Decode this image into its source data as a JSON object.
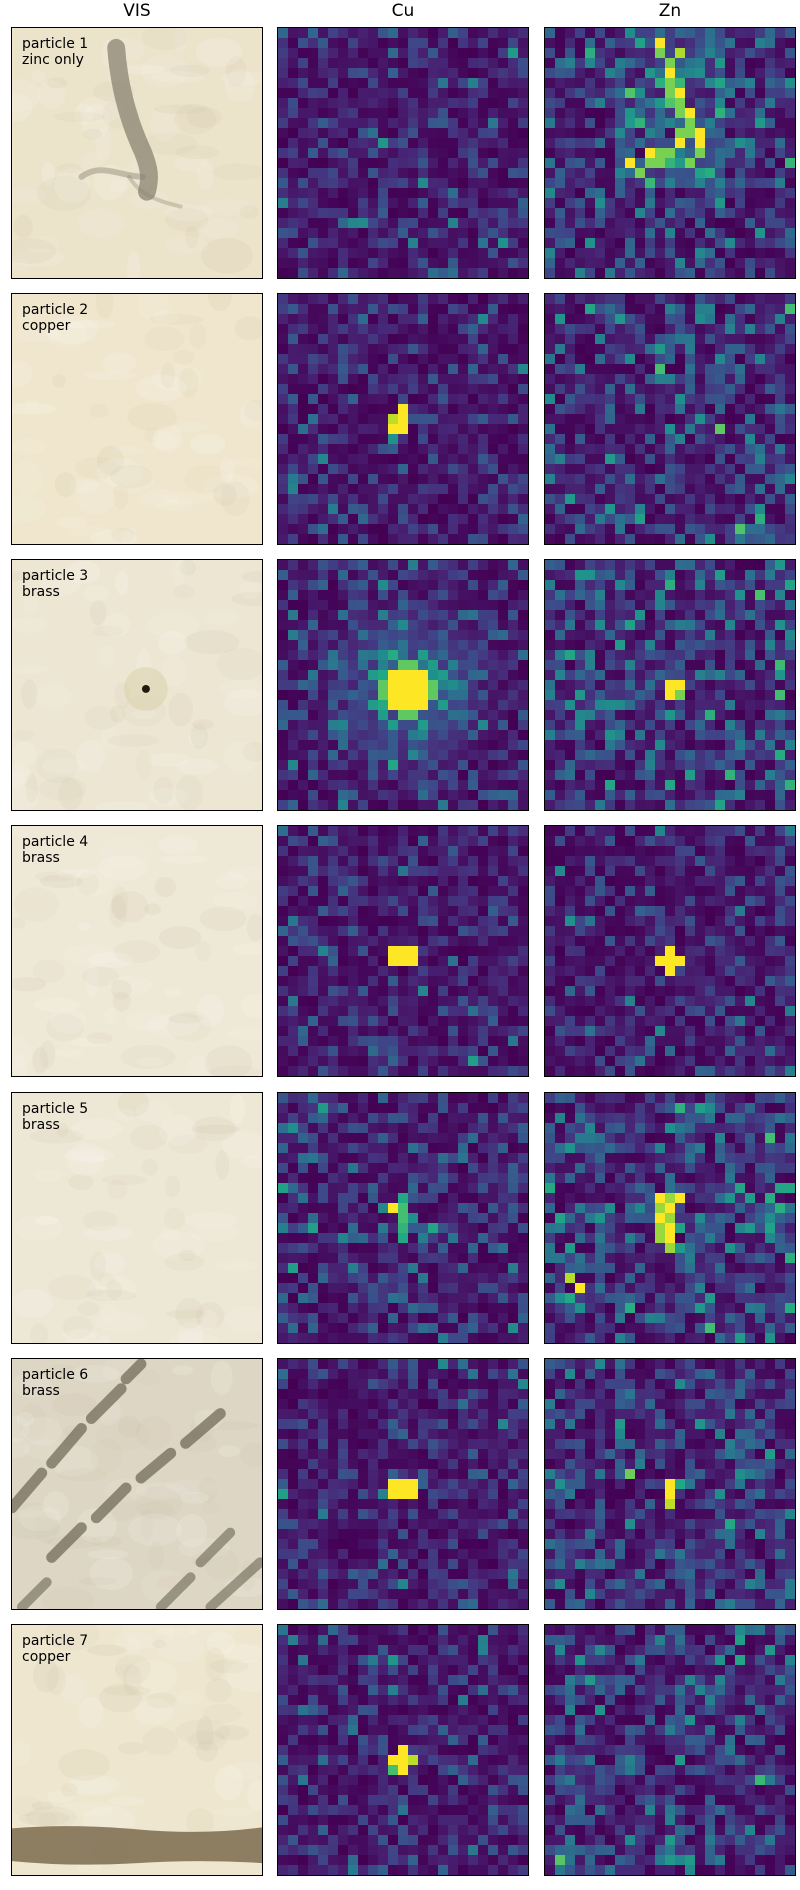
{
  "chart_data": {
    "type": "heatmap",
    "columns": [
      "VIS",
      "Cu",
      "Zn"
    ],
    "colormap": "viridis",
    "grid": [
      25,
      25
    ],
    "rows": [
      {
        "label_line1": "particle 1",
        "label_line2": "zinc only",
        "vis": {
          "paper": "#ece3cb",
          "feature": "vertical dark streak with branching stroke",
          "feature_color": "#8a8372"
        },
        "cu": {
          "hotspot": null,
          "background": 0.15
        },
        "zn": {
          "hotspot": "elongated streak, upper middle",
          "peak": 1.0,
          "background": 0.25
        }
      },
      {
        "label_line1": "particle 2",
        "label_line2": "copper",
        "vis": {
          "paper": "#efe6cd",
          "feature": "none"
        },
        "cu": {
          "hotspot": "small, center",
          "peak": 1.0,
          "background": 0.15
        },
        "zn": {
          "hotspot": "faint, center-right",
          "peak": 0.7,
          "background": 0.25
        }
      },
      {
        "label_line1": "particle 3",
        "label_line2": "brass",
        "vis": {
          "paper": "#ede6d3",
          "feature": "dark dot near center",
          "feature_color": "#201a10"
        },
        "cu": {
          "hotspot": "large, center with halo",
          "peak": 1.0,
          "background": 0.2
        },
        "zn": {
          "hotspot": "small, center",
          "peak": 1.0,
          "background": 0.3
        }
      },
      {
        "label_line1": "particle 4",
        "label_line2": "brass",
        "vis": {
          "paper": "#eee8d6",
          "feature": "none"
        },
        "cu": {
          "hotspot": "square, center",
          "peak": 1.0,
          "background": 0.15
        },
        "zn": {
          "hotspot": "cross, center",
          "peak": 1.0,
          "background": 0.15
        }
      },
      {
        "label_line1": "particle 5",
        "label_line2": "brass",
        "vis": {
          "paper": "#ede7d5",
          "feature": "none"
        },
        "cu": {
          "hotspot": "vertical, center",
          "peak": 1.0,
          "background": 0.2
        },
        "zn": {
          "hotspot": "vertical cluster, center",
          "peak": 1.0,
          "background": 0.3
        }
      },
      {
        "label_line1": "particle 6",
        "label_line2": "brass",
        "vis": {
          "paper": "#ddd6c4",
          "feature": "diagonal dark stripes",
          "feature_color": "#6b6453"
        },
        "cu": {
          "hotspot": "square, center",
          "peak": 1.0,
          "background": 0.15
        },
        "zn": {
          "hotspot": "small, center",
          "peak": 1.0,
          "background": 0.25
        }
      },
      {
        "label_line1": "particle 7",
        "label_line2": "copper",
        "vis": {
          "paper": "#eee6cf",
          "feature": "dark horizontal band at bottom",
          "feature_color": "#7b6a4e"
        },
        "cu": {
          "hotspot": "blob, lower center",
          "peak": 1.0,
          "background": 0.15
        },
        "zn": {
          "hotspot": null,
          "background": 0.25
        }
      }
    ]
  }
}
